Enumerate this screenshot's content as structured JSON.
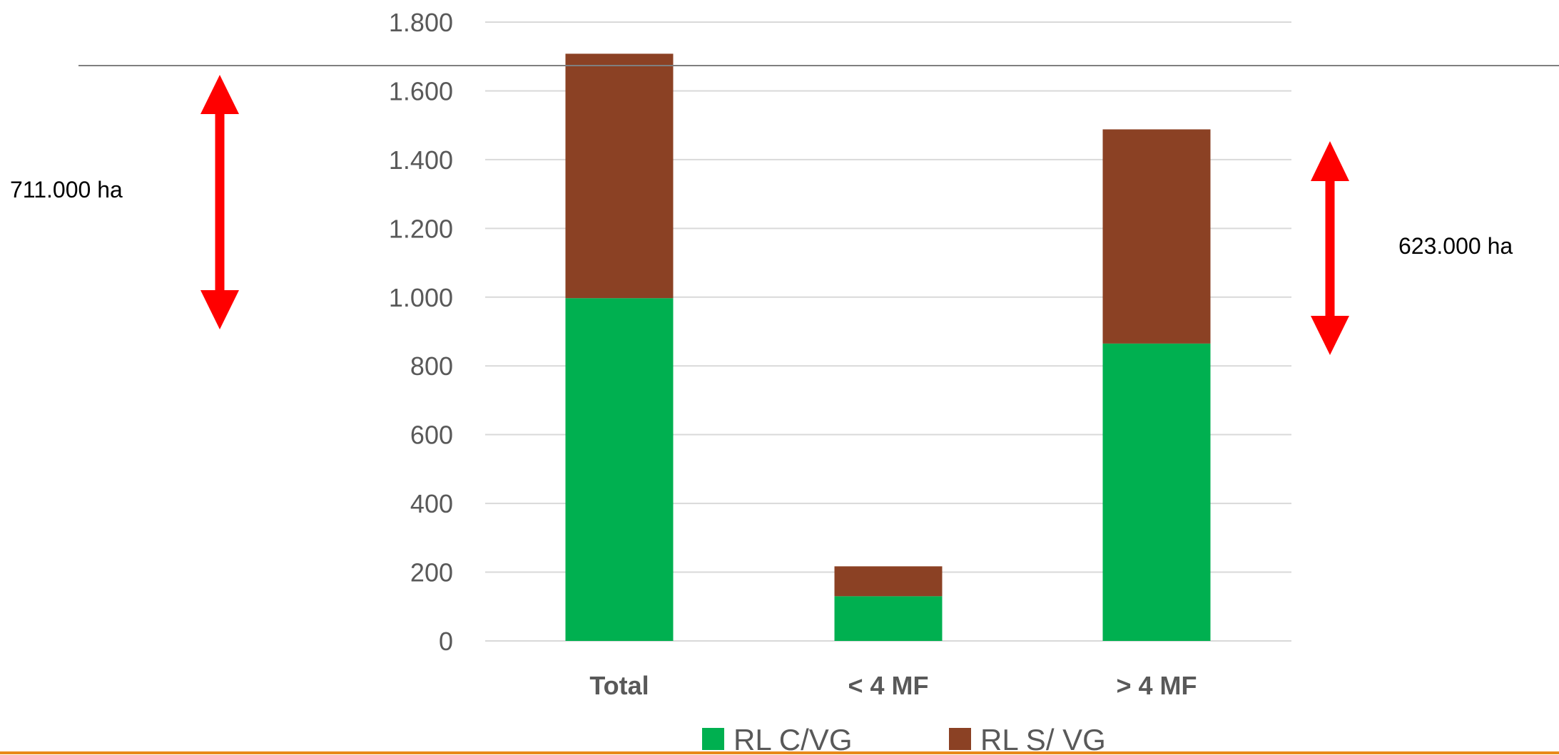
{
  "chart_data": {
    "type": "bar",
    "stacked": true,
    "categories": [
      "Total",
      "< 4 MF",
      "> 4 MF"
    ],
    "series": [
      {
        "name": "RL C/VG",
        "values": [
          997,
          130,
          865
        ],
        "color": "#00B050"
      },
      {
        "name": "RL S/ VG",
        "values": [
          711,
          87,
          623
        ],
        "color": "#8B4124"
      }
    ],
    "ylim": [
      0,
      1800
    ],
    "yticks": [
      0,
      200,
      400,
      600,
      800,
      1000,
      1200,
      1400,
      1600,
      1800
    ],
    "ytick_labels": [
      "0",
      "200",
      "400",
      "600",
      "800",
      "1.000",
      "1.200",
      "1.400",
      "1.600",
      "1.800"
    ],
    "grid": true,
    "legend": "bottom",
    "annotations": [
      {
        "text": "711.000 ha",
        "category": "Total"
      },
      {
        "text": "623.000 ha",
        "category": "> 4 MF"
      }
    ],
    "colors": {
      "arrow": "#FF0000",
      "footer_rule": "#E88A1A",
      "header_rule": "#7F7F7F",
      "grid": "#D9D9D9"
    }
  }
}
